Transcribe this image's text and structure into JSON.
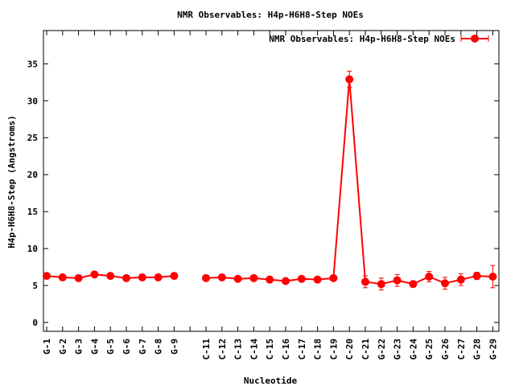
{
  "chart_data": {
    "type": "line",
    "title": "NMR Observables: H4p-H6H8-Step NOEs",
    "xlabel": "Nucleotide",
    "ylabel": "H4p-H6H8-Step (Angstroms)",
    "ylim": [
      -1.2,
      39.5
    ],
    "yticks": [
      0,
      5,
      10,
      15,
      20,
      25,
      30,
      35
    ],
    "grid": false,
    "legend_position": "top-right",
    "color": "#ff0000",
    "categories": [
      "G-1",
      "G-2",
      "G-3",
      "G-4",
      "G-5",
      "G-6",
      "G-7",
      "G-8",
      "G-9",
      "",
      "C-11",
      "C-12",
      "C-13",
      "C-14",
      "C-15",
      "C-16",
      "C-17",
      "C-18",
      "C-19",
      "C-20",
      "C-21",
      "G-22",
      "G-23",
      "G-24",
      "G-25",
      "G-26",
      "C-27",
      "G-28",
      "G-29"
    ],
    "series": [
      {
        "name": "NMR Observables: H4p-H6H8-Step NOEs",
        "values": [
          6.3,
          6.1,
          6.0,
          6.5,
          6.3,
          6.0,
          6.1,
          6.1,
          6.3,
          null,
          6.0,
          6.1,
          5.9,
          6.0,
          5.8,
          5.6,
          5.9,
          5.8,
          6.0,
          32.9,
          5.5,
          5.2,
          5.7,
          5.2,
          6.2,
          5.3,
          5.8,
          6.3,
          6.2
        ],
        "errors": [
          0.2,
          0.2,
          0.2,
          0.3,
          0.2,
          0.2,
          0.2,
          0.2,
          0.2,
          null,
          0.2,
          0.2,
          0.2,
          0.2,
          0.4,
          0.3,
          0.2,
          0.3,
          0.3,
          1.1,
          0.8,
          0.8,
          0.8,
          0.3,
          0.7,
          0.8,
          0.8,
          0.5,
          1.5
        ]
      }
    ]
  }
}
